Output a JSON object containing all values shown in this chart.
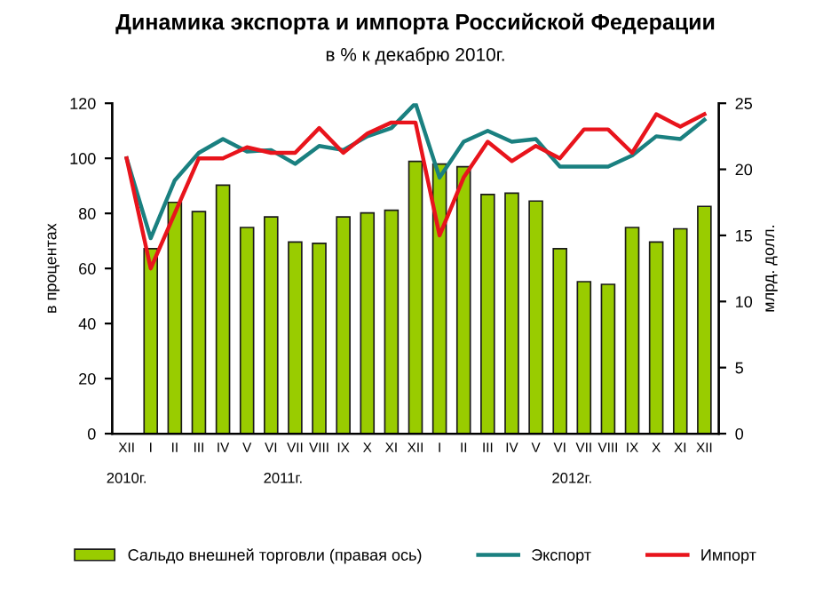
{
  "chart_data": {
    "type": "bar",
    "title": "Динамика экспорта и импорта Российской Федерации",
    "subtitle": "в % к декабрю 2010г.",
    "ylabel": "в процентах",
    "y2label": "млрд. долл.",
    "categories": [
      "XII",
      "I",
      "II",
      "III",
      "IV",
      "V",
      "VI",
      "VII",
      "VIII",
      "IX",
      "X",
      "XI",
      "XII",
      "I",
      "II",
      "III",
      "IV",
      "V",
      "VI",
      "VII",
      "VIII",
      "IX",
      "X",
      "XI",
      "XII"
    ],
    "series": [
      {
        "name": "Сальдо внешней торговли (правая ось)",
        "axis": "y2",
        "color": "#99cc00",
        "values": [
          null,
          14.0,
          17.5,
          16.8,
          18.8,
          15.6,
          16.4,
          14.5,
          14.4,
          16.4,
          16.7,
          16.9,
          20.6,
          20.4,
          20.2,
          18.1,
          18.2,
          17.6,
          14.0,
          11.5,
          11.3,
          15.6,
          14.5,
          15.5,
          17.2
        ]
      },
      {
        "name": "Экспорт",
        "type": "line",
        "color": "#1a8080",
        "values": [
          100,
          71,
          92,
          102,
          107,
          102.5,
          103,
          98,
          104.5,
          103,
          108,
          111,
          120,
          93,
          106,
          110,
          106,
          107,
          97,
          97,
          97,
          101,
          108,
          107,
          114
        ]
      },
      {
        "name": "Импорт",
        "type": "line",
        "color": "#e8141c",
        "values": [
          100,
          60,
          80,
          100,
          100,
          104,
          102,
          102,
          111,
          102,
          109,
          113,
          113,
          72,
          93,
          106,
          99,
          104.5,
          100,
          110.5,
          110.5,
          102,
          116,
          111.5,
          116
        ]
      }
    ],
    "ylim": [
      0,
      120
    ],
    "yticks": [
      0,
      20,
      40,
      60,
      80,
      100,
      120
    ],
    "y2lim": [
      0,
      25
    ],
    "y2ticks": [
      0,
      5,
      10,
      15,
      20,
      25
    ],
    "annotations": [
      "2010г.",
      "2011г.",
      "2012г."
    ],
    "grid": false,
    "legend": "bottom",
    "marker": "none"
  }
}
